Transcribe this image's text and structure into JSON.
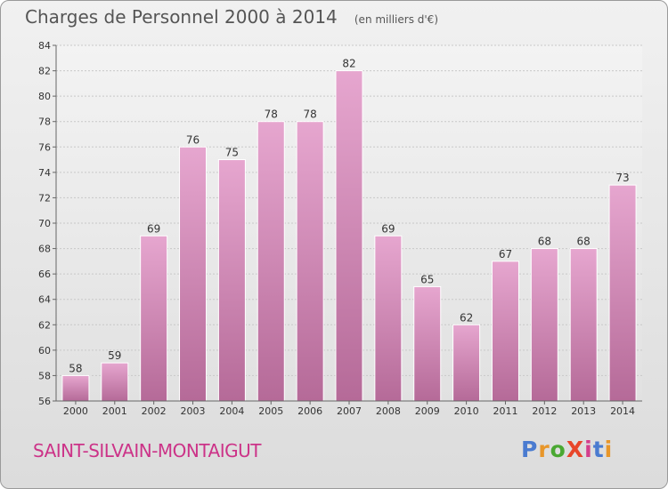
{
  "title": "Charges de Personnel 2000 à 2014",
  "subtitle": "(en milliers d'€)",
  "commune": "SAINT-SILVAIN-MONTAIGUT",
  "logo": {
    "text": "ProXiti",
    "letters": [
      "P",
      "r",
      "o",
      "X",
      "i",
      "t",
      "i"
    ],
    "colors": [
      "#4a7bd0",
      "#e8962a",
      "#4aa832",
      "#e8462a",
      "#d43e8c",
      "#4a7bd0",
      "#e8962a"
    ]
  },
  "colors": {
    "bar_top": "#e6a6cf",
    "bar_bottom": "#b56a98",
    "title": "#555555",
    "commune": "#cc3388"
  },
  "chart_data": {
    "type": "bar",
    "categories": [
      "2000",
      "2001",
      "2002",
      "2003",
      "2004",
      "2005",
      "2006",
      "2007",
      "2008",
      "2009",
      "2010",
      "2011",
      "2012",
      "2013",
      "2014"
    ],
    "values": [
      58,
      59,
      69,
      76,
      75,
      78,
      78,
      82,
      69,
      65,
      62,
      67,
      68,
      68,
      73
    ],
    "data_labels": [
      "58",
      "59",
      "69",
      "76",
      "75",
      "78",
      "78",
      "82",
      "69",
      "65",
      "62",
      "67",
      "68",
      "68",
      "73"
    ],
    "yticks": [
      56,
      58,
      60,
      62,
      64,
      66,
      68,
      70,
      72,
      74,
      76,
      78,
      80,
      82,
      84
    ],
    "ylim": [
      56,
      84
    ],
    "grid": true,
    "xlabel": "",
    "ylabel": ""
  }
}
